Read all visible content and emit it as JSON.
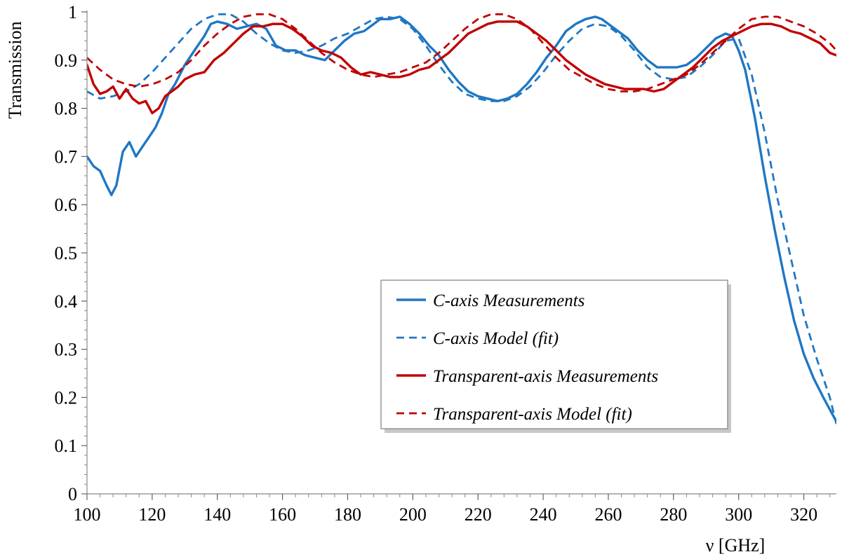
{
  "chart_data": {
    "type": "line",
    "title": "",
    "xlabel": "ν [GHz]",
    "ylabel": "Transmission",
    "xlim": [
      100,
      330
    ],
    "ylim": [
      0,
      1
    ],
    "x_ticks": [
      100,
      120,
      140,
      160,
      180,
      200,
      220,
      240,
      260,
      280,
      300,
      320
    ],
    "x_tick_labels": [
      "100",
      "120",
      "140",
      "160",
      "180",
      "200",
      "220",
      "240",
      "260",
      "280",
      "300",
      "320"
    ],
    "y_ticks": [
      0,
      0.1,
      0.2,
      0.3,
      0.4,
      0.5,
      0.6,
      0.7,
      0.8,
      0.9,
      1
    ],
    "y_tick_labels": [
      "0",
      "0.1",
      "0.2",
      "0.3",
      "0.4",
      "0.5",
      "0.6",
      "0.7",
      "0.8",
      "0.9",
      "1"
    ],
    "grid": false,
    "legend_position": "center-right",
    "series": [
      {
        "name": "C-axis Measurements",
        "color": "#1f77c4",
        "style": "solid",
        "x": [
          100,
          102,
          104,
          106,
          107.5,
          109,
          111,
          113,
          115,
          117,
          119,
          121,
          123,
          125,
          127,
          130,
          133,
          136,
          138,
          140,
          143,
          146,
          149,
          152,
          155,
          158,
          161,
          164,
          167,
          170,
          173,
          176,
          179,
          182,
          185,
          188,
          190,
          193,
          196,
          199,
          202,
          205,
          208,
          211,
          214,
          217,
          220,
          223,
          226,
          229,
          232,
          235,
          238,
          241,
          244,
          247,
          250,
          253,
          256,
          258,
          260,
          263,
          266,
          269,
          272,
          275,
          278,
          281,
          284,
          287,
          290,
          293,
          296,
          298,
          300,
          302,
          305,
          308,
          311,
          314,
          317,
          320,
          323,
          326,
          330
        ],
        "y": [
          0.7,
          0.68,
          0.67,
          0.64,
          0.62,
          0.64,
          0.71,
          0.73,
          0.7,
          0.72,
          0.74,
          0.76,
          0.79,
          0.83,
          0.85,
          0.89,
          0.92,
          0.95,
          0.975,
          0.98,
          0.975,
          0.965,
          0.97,
          0.975,
          0.965,
          0.93,
          0.92,
          0.92,
          0.91,
          0.905,
          0.9,
          0.92,
          0.94,
          0.955,
          0.96,
          0.975,
          0.985,
          0.985,
          0.99,
          0.975,
          0.955,
          0.93,
          0.91,
          0.88,
          0.855,
          0.835,
          0.825,
          0.82,
          0.815,
          0.82,
          0.83,
          0.85,
          0.875,
          0.905,
          0.93,
          0.96,
          0.975,
          0.985,
          0.99,
          0.985,
          0.975,
          0.96,
          0.945,
          0.92,
          0.9,
          0.885,
          0.885,
          0.885,
          0.89,
          0.905,
          0.925,
          0.945,
          0.955,
          0.95,
          0.92,
          0.88,
          0.78,
          0.66,
          0.55,
          0.45,
          0.36,
          0.29,
          0.24,
          0.2,
          0.15
        ]
      },
      {
        "name": "C-axis Model (fit)",
        "color": "#1f77c4",
        "style": "dashed",
        "x": [
          100,
          104,
          108,
          112,
          116,
          120,
          124,
          128,
          132,
          136,
          140,
          144,
          148,
          152,
          156,
          160,
          164,
          168,
          172,
          176,
          180,
          184,
          188,
          192,
          196,
          200,
          204,
          208,
          212,
          216,
          220,
          224,
          228,
          232,
          236,
          240,
          244,
          248,
          252,
          256,
          260,
          264,
          268,
          272,
          276,
          280,
          284,
          288,
          292,
          296,
          300,
          304,
          308,
          312,
          316,
          320,
          324,
          328,
          330
        ],
        "y": [
          0.835,
          0.82,
          0.825,
          0.835,
          0.85,
          0.875,
          0.905,
          0.935,
          0.965,
          0.985,
          0.995,
          0.995,
          0.98,
          0.955,
          0.935,
          0.92,
          0.915,
          0.92,
          0.93,
          0.945,
          0.955,
          0.97,
          0.985,
          0.99,
          0.985,
          0.965,
          0.93,
          0.89,
          0.855,
          0.83,
          0.82,
          0.815,
          0.815,
          0.825,
          0.845,
          0.875,
          0.91,
          0.94,
          0.965,
          0.975,
          0.97,
          0.95,
          0.92,
          0.885,
          0.865,
          0.86,
          0.865,
          0.885,
          0.91,
          0.94,
          0.945,
          0.87,
          0.75,
          0.61,
          0.49,
          0.37,
          0.28,
          0.2,
          0.145
        ]
      },
      {
        "name": "Transparent-axis Measurements",
        "color": "#c00000",
        "style": "solid",
        "x": [
          100,
          102,
          104,
          106,
          108,
          110,
          112,
          114,
          116,
          118,
          120,
          122,
          124,
          126,
          128,
          130,
          133,
          136,
          139,
          142,
          145,
          148,
          151,
          154,
          157,
          160,
          163,
          166,
          169,
          172,
          175,
          178,
          181,
          184,
          187,
          190,
          193,
          196,
          199,
          202,
          205,
          208,
          211,
          214,
          217,
          220,
          223,
          226,
          229,
          232,
          235,
          238,
          241,
          244,
          247,
          250,
          253,
          256,
          259,
          262,
          265,
          268,
          271,
          274,
          277,
          280,
          283,
          286,
          289,
          292,
          295,
          298,
          301,
          304,
          307,
          310,
          313,
          316,
          319,
          322,
          325,
          328,
          330
        ],
        "y": [
          0.89,
          0.85,
          0.83,
          0.835,
          0.845,
          0.82,
          0.84,
          0.82,
          0.81,
          0.815,
          0.79,
          0.8,
          0.825,
          0.835,
          0.845,
          0.86,
          0.87,
          0.875,
          0.9,
          0.915,
          0.935,
          0.955,
          0.97,
          0.97,
          0.975,
          0.975,
          0.965,
          0.95,
          0.93,
          0.92,
          0.915,
          0.905,
          0.885,
          0.87,
          0.875,
          0.87,
          0.865,
          0.865,
          0.87,
          0.88,
          0.885,
          0.9,
          0.915,
          0.935,
          0.955,
          0.965,
          0.975,
          0.98,
          0.98,
          0.98,
          0.97,
          0.955,
          0.94,
          0.92,
          0.9,
          0.885,
          0.87,
          0.86,
          0.85,
          0.845,
          0.84,
          0.84,
          0.84,
          0.835,
          0.84,
          0.855,
          0.87,
          0.885,
          0.905,
          0.925,
          0.94,
          0.95,
          0.96,
          0.97,
          0.975,
          0.975,
          0.97,
          0.96,
          0.955,
          0.945,
          0.935,
          0.915,
          0.91
        ]
      },
      {
        "name": "Transparent-axis Model (fit)",
        "color": "#c00000",
        "style": "dashed",
        "x": [
          100,
          104,
          108,
          112,
          116,
          120,
          124,
          128,
          132,
          136,
          140,
          144,
          148,
          152,
          156,
          160,
          164,
          168,
          172,
          176,
          180,
          184,
          188,
          192,
          196,
          200,
          204,
          208,
          212,
          216,
          220,
          224,
          228,
          232,
          236,
          240,
          244,
          248,
          252,
          256,
          260,
          264,
          268,
          272,
          276,
          280,
          284,
          288,
          292,
          296,
          300,
          304,
          308,
          312,
          316,
          320,
          324,
          328,
          330
        ],
        "y": [
          0.905,
          0.88,
          0.86,
          0.85,
          0.845,
          0.85,
          0.86,
          0.875,
          0.9,
          0.93,
          0.955,
          0.975,
          0.99,
          0.995,
          0.995,
          0.985,
          0.965,
          0.94,
          0.915,
          0.895,
          0.88,
          0.87,
          0.865,
          0.87,
          0.875,
          0.885,
          0.895,
          0.915,
          0.94,
          0.965,
          0.985,
          0.995,
          0.995,
          0.985,
          0.965,
          0.935,
          0.905,
          0.88,
          0.865,
          0.85,
          0.84,
          0.835,
          0.835,
          0.84,
          0.85,
          0.86,
          0.87,
          0.89,
          0.915,
          0.94,
          0.965,
          0.985,
          0.99,
          0.99,
          0.98,
          0.97,
          0.955,
          0.935,
          0.92
        ]
      }
    ]
  }
}
